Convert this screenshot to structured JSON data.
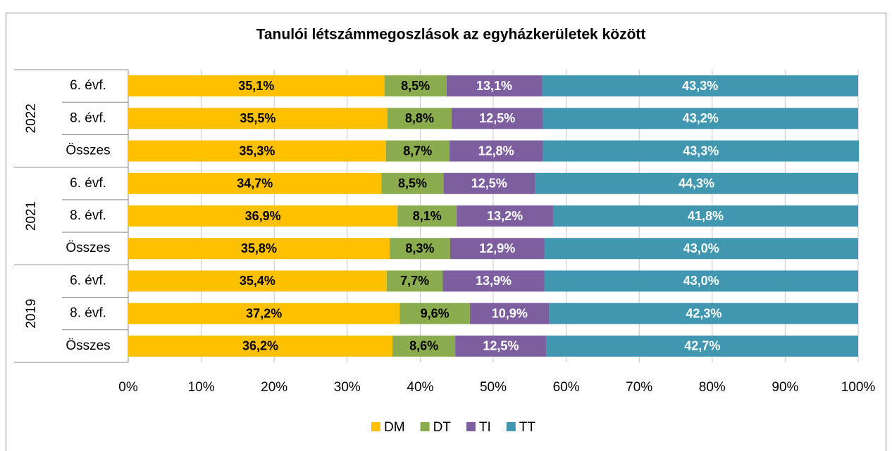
{
  "chart_data": {
    "type": "stacked_bar_horizontal",
    "title": "Tanulói létszámmegoszlások az egyházkerületek között",
    "groups": [
      {
        "name": "2022",
        "categories": [
          "6. évf.",
          "8. évf.",
          "Összes"
        ]
      },
      {
        "name": "2021",
        "categories": [
          "6. évf.",
          "8. évf.",
          "Összes"
        ]
      },
      {
        "name": "2019",
        "categories": [
          "6. évf.",
          "8. évf.",
          "Összes"
        ]
      }
    ],
    "series": [
      {
        "name": "DM",
        "color": "#ffc000",
        "label_color": "#000000",
        "values": [
          35.1,
          35.5,
          35.3,
          34.7,
          36.9,
          35.8,
          35.4,
          37.2,
          36.2
        ],
        "value_labels": [
          "35,1%",
          "35,5%",
          "35,3%",
          "34,7%",
          "36,9%",
          "35,8%",
          "35,4%",
          "37,2%",
          "36,2%"
        ]
      },
      {
        "name": "DT",
        "color": "#8aab4e",
        "label_color": "#000000",
        "values": [
          8.5,
          8.8,
          8.7,
          8.5,
          8.1,
          8.3,
          7.7,
          9.6,
          8.6
        ],
        "value_labels": [
          "8,5%",
          "8,8%",
          "8,7%",
          "8,5%",
          "8,1%",
          "8,3%",
          "7,7%",
          "9,6%",
          "8,6%"
        ]
      },
      {
        "name": "TI",
        "color": "#7d5f9f",
        "label_color": "#ffffff",
        "values": [
          13.1,
          12.5,
          12.8,
          12.5,
          13.2,
          12.9,
          13.9,
          10.9,
          12.5
        ],
        "value_labels": [
          "13,1%",
          "12,5%",
          "12,8%",
          "12,5%",
          "13,2%",
          "12,9%",
          "13,9%",
          "10,9%",
          "12,5%"
        ]
      },
      {
        "name": "TT",
        "color": "#4197af",
        "label_color": "#ffffff",
        "values": [
          43.3,
          43.2,
          43.3,
          44.3,
          41.8,
          43.0,
          43.0,
          42.3,
          42.7
        ],
        "value_labels": [
          "43,3%",
          "43,2%",
          "43,3%",
          "44,3%",
          "41,8%",
          "43,0%",
          "43,0%",
          "42,3%",
          "42,7%"
        ]
      }
    ],
    "xlim": [
      0,
      100
    ],
    "xticks": [
      {
        "value": 0,
        "label": "0%"
      },
      {
        "value": 10,
        "label": "10%"
      },
      {
        "value": 20,
        "label": "20%"
      },
      {
        "value": 30,
        "label": "30%"
      },
      {
        "value": 40,
        "label": "40%"
      },
      {
        "value": 50,
        "label": "50%"
      },
      {
        "value": 60,
        "label": "60%"
      },
      {
        "value": 70,
        "label": "70%"
      },
      {
        "value": 80,
        "label": "80%"
      },
      {
        "value": 90,
        "label": "90%"
      },
      {
        "value": 100,
        "label": "100%"
      }
    ],
    "grid": true,
    "legend": "bottom"
  }
}
